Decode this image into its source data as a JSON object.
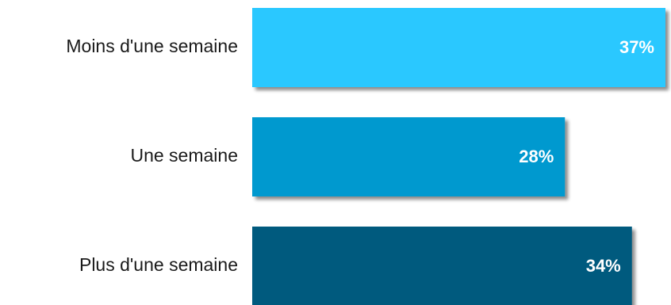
{
  "chart_data": {
    "type": "bar",
    "orientation": "horizontal",
    "categories": [
      "Moins d'une semaine",
      "Une semaine",
      "Plus d'une semaine"
    ],
    "values": [
      37,
      28,
      34
    ],
    "value_labels": [
      "37%",
      "28%",
      "34%"
    ],
    "colors": [
      "#2BC8FF",
      "#0099CF",
      "#005A7E"
    ],
    "unit": "%",
    "xlim": [
      0,
      37
    ],
    "grid": false,
    "legend": "none"
  }
}
